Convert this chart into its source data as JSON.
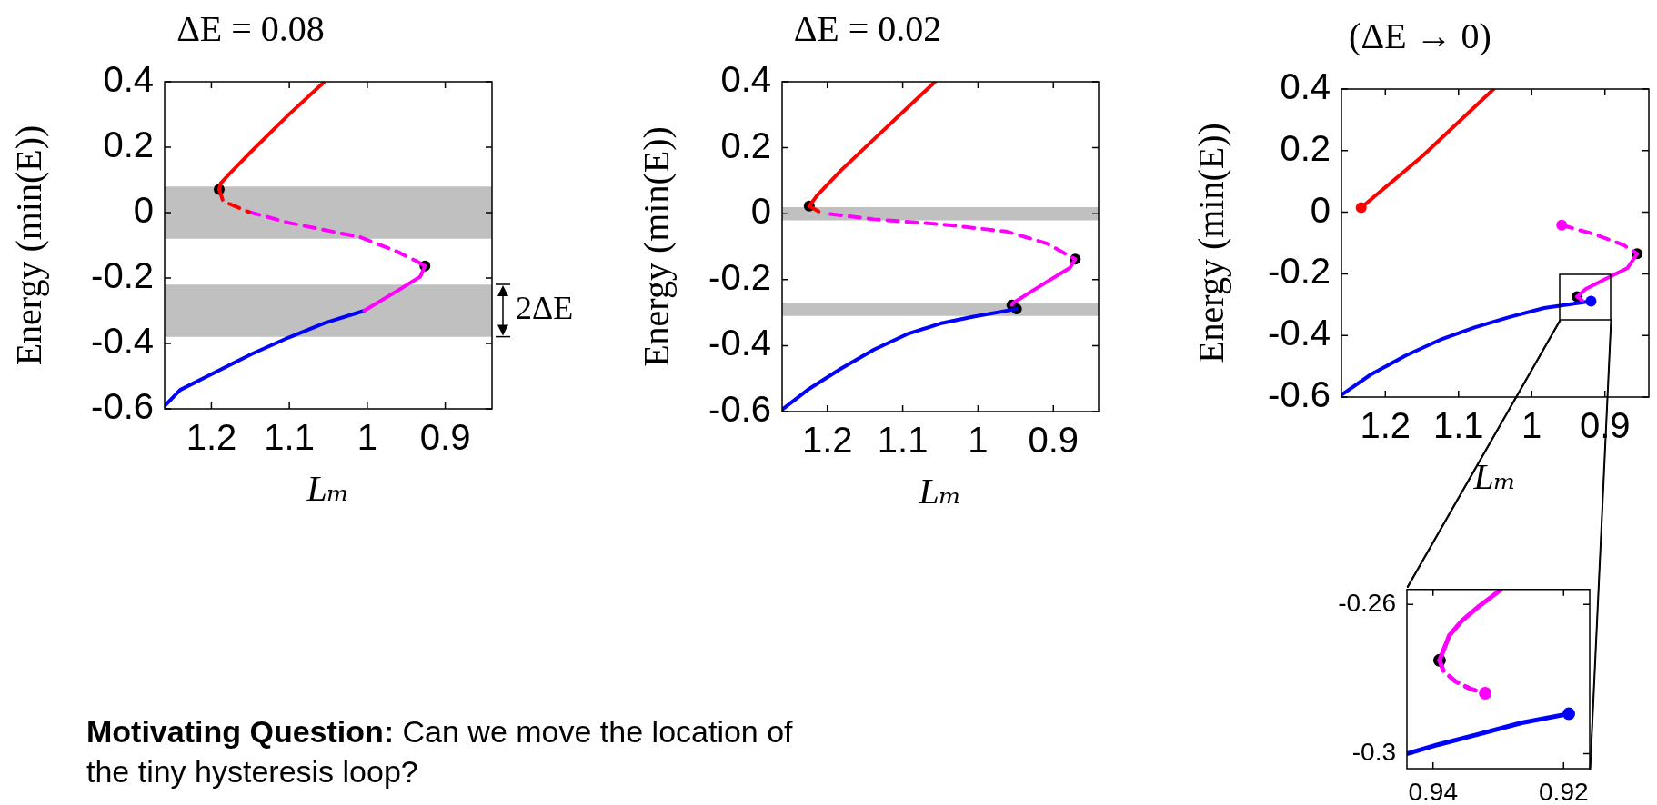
{
  "chart_data": [
    {
      "type": "line",
      "title": "ΔE = 0.08",
      "xlabel": "Lₘ",
      "ylabel": "Energy (min(E))",
      "xlim": [
        1.26,
        0.84
      ],
      "ylim": [
        -0.6,
        0.4
      ],
      "xticks": [
        1.2,
        1.1,
        1,
        0.9
      ],
      "yticks": [
        -0.6,
        -0.4,
        -0.2,
        0,
        0.2,
        0.4
      ],
      "bands": [
        {
          "axis": "y",
          "from": -0.08,
          "to": 0.08,
          "color": "#c0c0c0"
        },
        {
          "axis": "y",
          "from": -0.38,
          "to": -0.22,
          "color": "#c0c0c0",
          "label": "2ΔE"
        }
      ],
      "series": [
        {
          "type": "line",
          "color": "#ff0000",
          "line_style": "solid",
          "x": [
            1.055,
            1.101,
            1.148,
            1.175,
            1.188,
            1.19
          ],
          "values": [
            0.4,
            0.299,
            0.189,
            0.123,
            0.09,
            0.071
          ]
        },
        {
          "type": "line",
          "color": "#ff0000",
          "line_style": "dashed",
          "x": [
            1.19,
            1.185,
            1.152
          ],
          "values": [
            0.071,
            0.035,
            0.002
          ]
        },
        {
          "type": "line",
          "color": "#ff00ff",
          "line_style": "dashed",
          "x": [
            1.152,
            1.101,
            1.055,
            1.009,
            0.962,
            0.939,
            0.926
          ],
          "values": [
            0.002,
            -0.031,
            -0.053,
            -0.075,
            -0.119,
            -0.146,
            -0.163
          ]
        },
        {
          "type": "line",
          "color": "#ff00ff",
          "line_style": "solid",
          "x": [
            0.926,
            0.932,
            0.962,
            1.004
          ],
          "values": [
            -0.163,
            -0.196,
            -0.24,
            -0.3
          ]
        },
        {
          "type": "line",
          "color": "#0000ff",
          "line_style": "solid",
          "x": [
            1.004,
            1.055,
            1.101,
            1.148,
            1.194,
            1.24,
            1.26
          ],
          "values": [
            -0.3,
            -0.338,
            -0.382,
            -0.432,
            -0.487,
            -0.542,
            -0.591
          ]
        },
        {
          "type": "scatter",
          "color": "#000000",
          "marker": "circle",
          "x": [
            1.19,
            0.926
          ],
          "values": [
            0.071,
            -0.163
          ]
        }
      ]
    },
    {
      "type": "line",
      "title": "ΔE = 0.02",
      "xlabel": "Lₘ",
      "ylabel": "Energy (min(E))",
      "xlim": [
        1.26,
        0.84
      ],
      "ylim": [
        -0.6,
        0.4
      ],
      "xticks": [
        1.2,
        1.1,
        1,
        0.9
      ],
      "yticks": [
        -0.6,
        -0.4,
        -0.2,
        0,
        0.2,
        0.4
      ],
      "bands": [
        {
          "axis": "y",
          "from": -0.02,
          "to": 0.02,
          "color": "#c0c0c0"
        },
        {
          "axis": "y",
          "from": -0.31,
          "to": -0.27,
          "color": "#c0c0c0"
        }
      ],
      "series": [
        {
          "type": "line",
          "color": "#ff0000",
          "line_style": "solid",
          "x": [
            1.057,
            1.094,
            1.138,
            1.182,
            1.213,
            1.224
          ],
          "values": [
            0.4,
            0.321,
            0.226,
            0.131,
            0.057,
            0.023
          ]
        },
        {
          "type": "line",
          "color": "#ff0000",
          "line_style": "dashed",
          "x": [
            1.224,
            1.209
          ],
          "values": [
            0.023,
            0.004
          ]
        },
        {
          "type": "line",
          "color": "#ff00ff",
          "line_style": "dashed",
          "x": [
            1.196,
            1.138,
            1.05,
            0.962,
            0.909,
            0.871
          ],
          "values": [
            -0.001,
            -0.017,
            -0.032,
            -0.054,
            -0.09,
            -0.138
          ]
        },
        {
          "type": "line",
          "color": "#ff00ff",
          "line_style": "solid",
          "x": [
            0.871,
            0.878,
            0.909,
            0.953,
            0.955
          ],
          "values": [
            -0.138,
            -0.164,
            -0.207,
            -0.27,
            -0.277
          ]
        },
        {
          "type": "line",
          "color": "#0000ff",
          "line_style": "solid",
          "x": [
            0.949,
            1.006,
            1.05,
            1.094,
            1.138,
            1.182,
            1.226,
            1.259
          ],
          "values": [
            -0.289,
            -0.312,
            -0.333,
            -0.365,
            -0.412,
            -0.47,
            -0.534,
            -0.592
          ]
        },
        {
          "type": "scatter",
          "color": "#000000",
          "marker": "circle",
          "x": [
            1.224,
            0.871,
            0.955,
            0.949
          ],
          "values": [
            0.023,
            -0.138,
            -0.277,
            -0.289
          ]
        }
      ]
    },
    {
      "type": "line",
      "title": "(ΔE → 0)",
      "xlabel": "Lₘ",
      "ylabel": "Energy (min(E))",
      "xlim": [
        1.26,
        0.84
      ],
      "ylim": [
        -0.6,
        0.4
      ],
      "xticks": [
        1.2,
        1.1,
        1,
        0.9
      ],
      "yticks": [
        -0.6,
        -0.4,
        -0.2,
        0,
        0.2,
        0.4
      ],
      "series": [
        {
          "type": "line",
          "color": "#ff0000",
          "line_style": "solid",
          "x": [
            1.233,
            1.149,
            1.052
          ],
          "values": [
            0.015,
            0.183,
            0.4
          ]
        },
        {
          "type": "line",
          "color": "#ff00ff",
          "line_style": "dashed",
          "x": [
            0.959,
            0.912,
            0.874,
            0.856
          ],
          "values": [
            -0.042,
            -0.073,
            -0.107,
            -0.135
          ]
        },
        {
          "type": "line",
          "color": "#ff00ff",
          "line_style": "solid",
          "x": [
            0.856,
            0.869,
            0.893,
            0.926,
            0.938
          ],
          "values": [
            -0.135,
            -0.181,
            -0.209,
            -0.249,
            -0.274
          ]
        },
        {
          "type": "line",
          "color": "#ff00ff",
          "line_style": "dashed",
          "x": [
            0.938,
            0.931
          ],
          "values": [
            -0.274,
            -0.286
          ]
        },
        {
          "type": "line",
          "color": "#0000ff",
          "line_style": "solid",
          "x": [
            1.26,
            1.22,
            1.172,
            1.125,
            1.078,
            1.03,
            0.983,
            0.919
          ],
          "values": [
            -0.593,
            -0.527,
            -0.465,
            -0.414,
            -0.374,
            -0.34,
            -0.311,
            -0.289
          ]
        },
        {
          "type": "scatter",
          "color": "#000000",
          "marker": "circle",
          "x": [
            0.856,
            0.938
          ],
          "values": [
            -0.135,
            -0.274
          ]
        },
        {
          "type": "scatter",
          "colors": [
            "#ff0000",
            "#ff00ff",
            "#ff00ff",
            "#0000ff"
          ],
          "marker": "circle",
          "x": [
            1.233,
            0.959,
            0.931,
            0.919
          ],
          "values": [
            0.015,
            -0.042,
            null,
            -0.289
          ]
        }
      ]
    },
    {
      "type": "line",
      "xlim": [
        0.944,
        0.916
      ],
      "ylim": [
        -0.304,
        -0.256
      ],
      "xticks": [
        0.94,
        0.92
      ],
      "yticks": [
        -0.3,
        -0.26
      ],
      "series": [
        {
          "type": "line",
          "color": "#ff00ff",
          "line_style": "solid",
          "x": [
            0.9297,
            0.9329,
            0.9356,
            0.9375,
            0.9384,
            0.939
          ],
          "values": [
            -0.2562,
            -0.2604,
            -0.2644,
            -0.2683,
            -0.2723,
            -0.275
          ]
        },
        {
          "type": "line",
          "color": "#ff00ff",
          "line_style": "dashed",
          "x": [
            0.939,
            0.9384,
            0.9366,
            0.9343,
            0.932
          ],
          "values": [
            -0.275,
            -0.2778,
            -0.2806,
            -0.2826,
            -0.2838
          ]
        },
        {
          "type": "line",
          "color": "#0000ff",
          "line_style": "solid",
          "x": [
            0.944,
            0.9393,
            0.9333,
            0.9264,
            0.9192
          ],
          "values": [
            -0.3,
            -0.2976,
            -0.2949,
            -0.2917,
            -0.2893
          ]
        },
        {
          "type": "scatter",
          "color": "#000000",
          "marker": "circle",
          "x": [
            0.939
          ],
          "values": [
            -0.275
          ]
        },
        {
          "type": "scatter",
          "colors": [
            "#ff00ff",
            "#0000ff"
          ],
          "marker": "circle",
          "x": [
            0.932,
            0.9192
          ],
          "values": [
            -0.2838,
            -0.2893
          ]
        }
      ]
    },
    {
      "type": "other",
      "title": "Motivating Question:",
      "subtitle": "Can we move the location of the tiny hysteresis loop?"
    }
  ]
}
